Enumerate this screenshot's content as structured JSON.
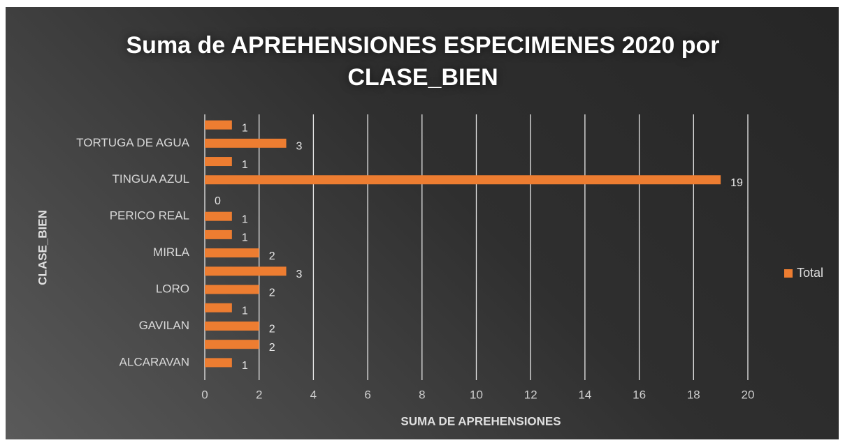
{
  "chart_data": {
    "type": "barh",
    "title": "Suma de APREHENSIONES ESPECIMENES 2020 por CLASE_BIEN",
    "xlabel": "SUMA DE APREHENSIONES",
    "ylabel": "CLASE_BIEN",
    "categories": [
      "ALCARAVAN",
      null,
      "GAVILAN",
      null,
      "LORO",
      null,
      "MIRLA",
      null,
      "PERICO REAL",
      null,
      "TINGUA AZUL",
      null,
      "TORTUGA DE AGUA",
      null
    ],
    "series": [
      {
        "name": "Total",
        "color": "#ed7d31",
        "values": [
          1,
          2,
          2,
          1,
          2,
          3,
          2,
          1,
          1,
          0,
          19,
          1,
          3,
          1
        ]
      }
    ],
    "xlim": [
      0,
      20
    ],
    "xticks": [
      0,
      2,
      4,
      6,
      8,
      10,
      12,
      14,
      16,
      18,
      20
    ],
    "grid": true,
    "legend": "right"
  }
}
